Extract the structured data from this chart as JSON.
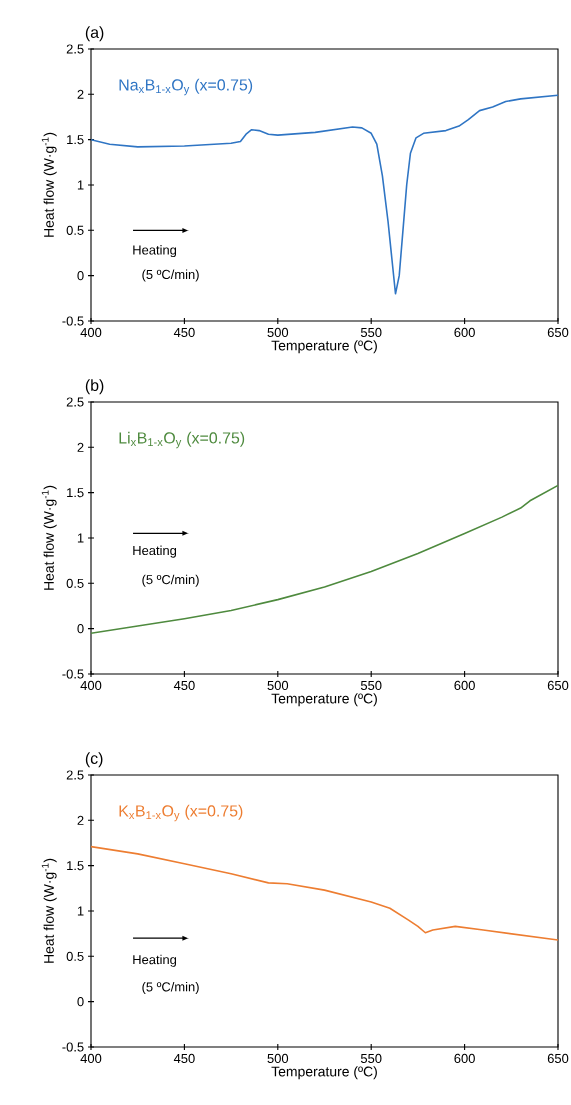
{
  "chart_data": [
    {
      "type": "line",
      "title": "(a)",
      "xlabel": "Temperature (ºC)",
      "ylabel": "Heat flow (W·g$^{-1}$)",
      "annotations": [
        "Heating",
        "(5 ºC/min)"
      ],
      "xlim": [
        400,
        650
      ],
      "ylim": [
        -0.5,
        2.5
      ],
      "xticks": [
        400,
        450,
        500,
        550,
        600,
        650
      ],
      "yticks": [
        -0.5,
        0,
        0.5,
        1,
        1.5,
        2,
        2.5
      ],
      "line_style": "solid",
      "series": [
        {
          "name": "Na$_{x}$B$_{1-x}$O$_{y}$ (x=0.75)",
          "color": "#2f75c4",
          "x": [
            400,
            410,
            425,
            450,
            475,
            480,
            483,
            486,
            490,
            495,
            500,
            520,
            540,
            545,
            550,
            553,
            556,
            559,
            561,
            563,
            565,
            567,
            569,
            571,
            574,
            578,
            590,
            597,
            602,
            608,
            615,
            622,
            630,
            650
          ],
          "values": [
            1.5,
            1.45,
            1.42,
            1.43,
            1.46,
            1.48,
            1.56,
            1.61,
            1.6,
            1.56,
            1.55,
            1.58,
            1.64,
            1.63,
            1.57,
            1.45,
            1.1,
            0.6,
            0.2,
            -0.2,
            0.0,
            0.5,
            1.0,
            1.35,
            1.52,
            1.57,
            1.6,
            1.65,
            1.72,
            1.82,
            1.86,
            1.92,
            1.95,
            1.99
          ]
        }
      ]
    },
    {
      "type": "line",
      "title": "(b)",
      "xlabel": "Temperature (ºC)",
      "ylabel": "Heat flow (W·g$^{-1}$)",
      "annotations": [
        "Heating",
        "(5 ºC/min)"
      ],
      "xlim": [
        400,
        650
      ],
      "ylim": [
        -0.5,
        2.5
      ],
      "xticks": [
        400,
        450,
        500,
        550,
        600,
        650
      ],
      "yticks": [
        -0.5,
        0,
        0.5,
        1,
        1.5,
        2,
        2.5
      ],
      "line_style": "solid",
      "series": [
        {
          "name": "Li$_{x}$B$_{1-x}$O$_{y}$ (x=0.75)",
          "color": "#4e8a3e",
          "x": [
            400,
            425,
            450,
            475,
            500,
            525,
            550,
            575,
            600,
            620,
            630,
            635,
            650
          ],
          "values": [
            -0.05,
            0.03,
            0.11,
            0.2,
            0.32,
            0.46,
            0.63,
            0.83,
            1.05,
            1.23,
            1.33,
            1.41,
            1.58
          ]
        }
      ]
    },
    {
      "type": "line",
      "title": "(c)",
      "xlabel": "Temperature (ºC)",
      "ylabel": "Heat flow (W·g$^{-1}$)",
      "annotations": [
        "Heating",
        "(5 ºC/min)"
      ],
      "xlim": [
        400,
        650
      ],
      "ylim": [
        -0.5,
        2.5
      ],
      "xticks": [
        400,
        450,
        500,
        550,
        600,
        650
      ],
      "yticks": [
        -0.5,
        0,
        0.5,
        1,
        1.5,
        2,
        2.5
      ],
      "line_style": "solid",
      "series": [
        {
          "name": "K$_{x}$B$_{1-x}$O$_{y}$ (x=0.75)",
          "color": "#ed7d31",
          "x": [
            400,
            425,
            450,
            475,
            495,
            505,
            525,
            550,
            560,
            570,
            575,
            579,
            583,
            595,
            610,
            650
          ],
          "values": [
            1.71,
            1.63,
            1.52,
            1.41,
            1.31,
            1.3,
            1.23,
            1.1,
            1.03,
            0.9,
            0.83,
            0.76,
            0.79,
            0.83,
            0.79,
            0.68
          ]
        }
      ]
    }
  ]
}
